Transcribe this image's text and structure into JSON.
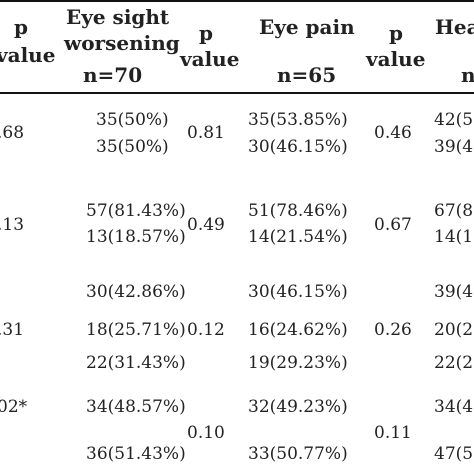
{
  "header": {
    "col1": {
      "line1": "p",
      "line2": "value"
    },
    "col2": {
      "line1": "Eye sight",
      "line2": "worsening",
      "n": "n=70"
    },
    "col3": {
      "line1": "p",
      "line2": "value"
    },
    "col4": {
      "line1": "Eye pain",
      "n": "n=65"
    },
    "col5": {
      "line1": "p",
      "line2": "value"
    },
    "col6": {
      "line1": "Hea",
      "n": "n"
    }
  },
  "rows": {
    "r1": {
      "pv1": ".68",
      "pv2": "0.81",
      "pv3": "0.46",
      "eye_sight": [
        "35(50%)",
        "35(50%)"
      ],
      "eye_pain": [
        "35(53.85%)",
        "30(46.15%)"
      ],
      "head": [
        "42(5",
        "39(4"
      ]
    },
    "r2": {
      "pv1": ".13",
      "pv2": "0.49",
      "pv3": "0.67",
      "eye_sight": [
        "57(81.43%)",
        "13(18.57%)"
      ],
      "eye_pain": [
        "51(78.46%)",
        "14(21.54%)"
      ],
      "head": [
        "67(8",
        "14(1"
      ]
    },
    "r3": {
      "pv1": ".31",
      "pv2": "0.12",
      "pv3": "0.26",
      "eye_sight": [
        "30(42.86%)",
        "18(25.71%)",
        "22(31.43%)"
      ],
      "eye_pain": [
        "30(46.15%)",
        "16(24.62%)",
        "19(29.23%)"
      ],
      "head": [
        "39(4",
        "20(2",
        "22(2"
      ]
    },
    "r4": {
      "pv1": "02*",
      "pv2": "0.10",
      "pv3": "0.11",
      "eye_sight": [
        "34(48.57%)",
        "36(51.43%)"
      ],
      "eye_pain": [
        "32(49.23%)",
        "33(50.77%)"
      ],
      "head": [
        "34(4",
        "47(5"
      ]
    }
  }
}
